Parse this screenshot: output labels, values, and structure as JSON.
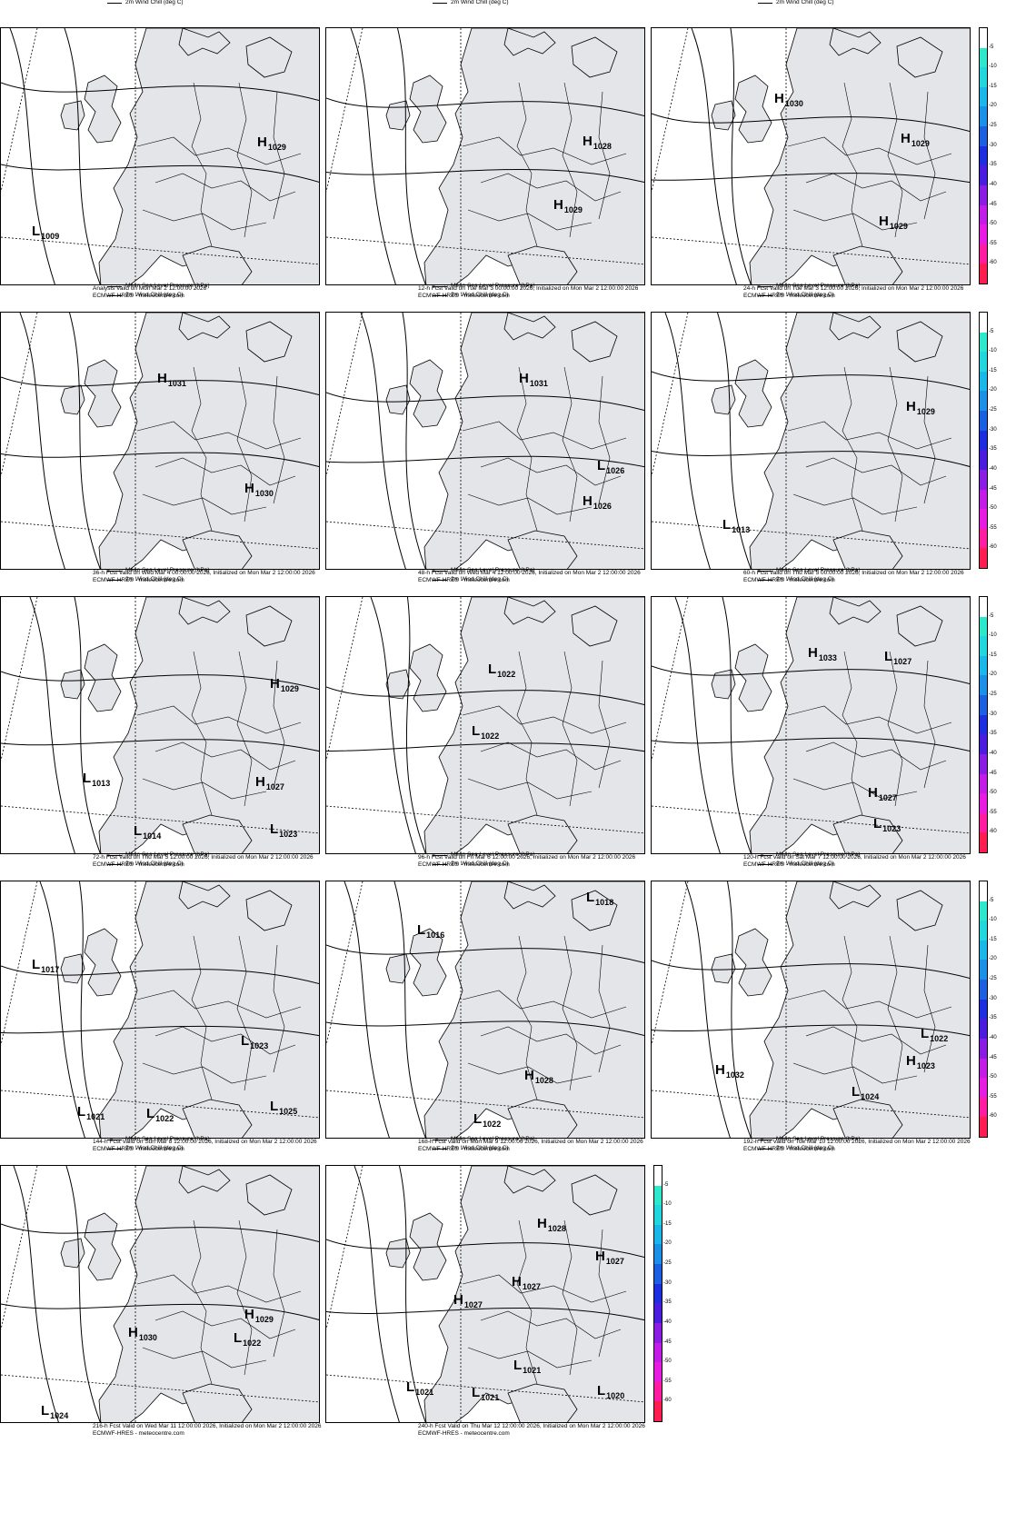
{
  "legend": {
    "mslp": "Mean Sea Level Pressure (hPa)",
    "windchill": "2m Wind Chill (deg C)"
  },
  "colorbar": {
    "labels": [
      "-5",
      "-10",
      "-15",
      "-20",
      "-25",
      "-30",
      "-35",
      "-40",
      "-45",
      "-50",
      "-55",
      "-60"
    ],
    "colors": [
      "#ffffff",
      "#2ee8cc",
      "#22d6de",
      "#1ab8e8",
      "#1a90e6",
      "#1a60e0",
      "#1c2ee0",
      "#4a1ce0",
      "#8a1ce4",
      "#c41ce8",
      "#e81ce0",
      "#ff1ca0",
      "#ff1c50"
    ]
  },
  "source_line": "ECMWF-HRES - meteocentre.com",
  "panels": [
    {
      "valid": "Analysis Valid on Mon Mar  2 12:00:00 2026",
      "markers": [
        {
          "t": "H",
          "v": "1029"
        },
        {
          "t": "L",
          "v": "1009"
        }
      ]
    },
    {
      "valid": "12-h Fcst Valid on Tue Mar  3 00:00:00 2026, Initialized on Mon Mar  2 12:00:00 2026",
      "markers": [
        {
          "t": "H",
          "v": "1028"
        },
        {
          "t": "H",
          "v": "1029"
        }
      ]
    },
    {
      "valid": "24-h Fcst Valid on Tue Mar  3 12:00:00 2026, Initialized on Mon Mar  2 12:00:00 2026",
      "markers": [
        {
          "t": "H",
          "v": "1030"
        },
        {
          "t": "H",
          "v": "1029"
        },
        {
          "t": "H",
          "v": "1029"
        }
      ]
    },
    {
      "valid": "36-h Fcst Valid on Wed Mar  4 00:00:00 2026, Initialized on Mon Mar  2 12:00:00 2026",
      "markers": [
        {
          "t": "H",
          "v": "1031"
        },
        {
          "t": "H",
          "v": "1030"
        }
      ]
    },
    {
      "valid": "48-h Fcst Valid on Wed Mar  4 12:00:00 2026, Initialized on Mon Mar  2 12:00:00 2026",
      "markers": [
        {
          "t": "H",
          "v": "1031"
        },
        {
          "t": "L",
          "v": "1026"
        },
        {
          "t": "H",
          "v": "1026"
        }
      ]
    },
    {
      "valid": "60-h Fcst Valid on Thu Mar  5 00:00:00 2026, Initialized on Mon Mar  2 12:00:00 2026",
      "markers": [
        {
          "t": "H",
          "v": "1029"
        },
        {
          "t": "L",
          "v": "1013"
        }
      ]
    },
    {
      "valid": "72-h Fcst Valid on Thu Mar  5 12:00:00 2026, Initialized on Mon Mar  2 12:00:00 2026",
      "markers": [
        {
          "t": "H",
          "v": "1029"
        },
        {
          "t": "L",
          "v": "1013"
        },
        {
          "t": "H",
          "v": "1027"
        },
        {
          "t": "L",
          "v": "1014"
        },
        {
          "t": "L",
          "v": "1023"
        }
      ]
    },
    {
      "valid": "96-h Fcst Valid on Fri Mar  6 12:00:00 2026, Initialized on Mon Mar  2 12:00:00 2026",
      "markers": [
        {
          "t": "L",
          "v": "1022"
        },
        {
          "t": "L",
          "v": "1022"
        }
      ]
    },
    {
      "valid": "120-h Fcst Valid on Sat Mar  7 12:00:00 2026, Initialized on Mon Mar  2 12:00:00 2026",
      "markers": [
        {
          "t": "H",
          "v": "1033"
        },
        {
          "t": "L",
          "v": "1027"
        },
        {
          "t": "H",
          "v": "1027"
        },
        {
          "t": "L",
          "v": "1023"
        }
      ]
    },
    {
      "valid": "144-h Fcst Valid on Sun Mar  8 12:00:00 2026, Initialized on Mon Mar  2 12:00:00 2026",
      "markers": [
        {
          "t": "L",
          "v": "1017"
        },
        {
          "t": "L",
          "v": "1023"
        },
        {
          "t": "L",
          "v": "1021"
        },
        {
          "t": "L",
          "v": "1022"
        },
        {
          "t": "L",
          "v": "1025"
        }
      ]
    },
    {
      "valid": "168-h Fcst Valid on Mon Mar  9 12:00:00 2026, Initialized on Mon Mar  2 12:00:00 2026",
      "markers": [
        {
          "t": "L",
          "v": "1018"
        },
        {
          "t": "L",
          "v": "1016"
        },
        {
          "t": "H",
          "v": "1028"
        },
        {
          "t": "L",
          "v": "1022"
        }
      ]
    },
    {
      "valid": "192-h Fcst Valid on Tue Mar 10 12:00:00 2026, Initialized on Mon Mar  2 12:00:00 2026",
      "markers": [
        {
          "t": "L",
          "v": "1022"
        },
        {
          "t": "H",
          "v": "1032"
        },
        {
          "t": "H",
          "v": "1023"
        },
        {
          "t": "L",
          "v": "1024"
        }
      ]
    },
    {
      "valid": "216-h Fcst Valid on Wed Mar 11 12:00:00 2026, Initialized on Mon Mar  2 12:00:00 2026",
      "markers": [
        {
          "t": "H",
          "v": "1029"
        },
        {
          "t": "H",
          "v": "1030"
        },
        {
          "t": "L",
          "v": "1022"
        },
        {
          "t": "L",
          "v": "1024"
        }
      ]
    },
    {
      "valid": "240-h Fcst Valid on Thu Mar 12 12:00:00 2026, Initialized on Mon Mar  2 12:00:00 2026",
      "markers": [
        {
          "t": "H",
          "v": "1028"
        },
        {
          "t": "H",
          "v": "1027"
        },
        {
          "t": "H",
          "v": "1027"
        },
        {
          "t": "H",
          "v": "1027"
        },
        {
          "t": "L",
          "v": "1021"
        },
        {
          "t": "L",
          "v": "1021"
        },
        {
          "t": "L",
          "v": "1021"
        },
        {
          "t": "L",
          "v": "1020"
        }
      ]
    }
  ]
}
